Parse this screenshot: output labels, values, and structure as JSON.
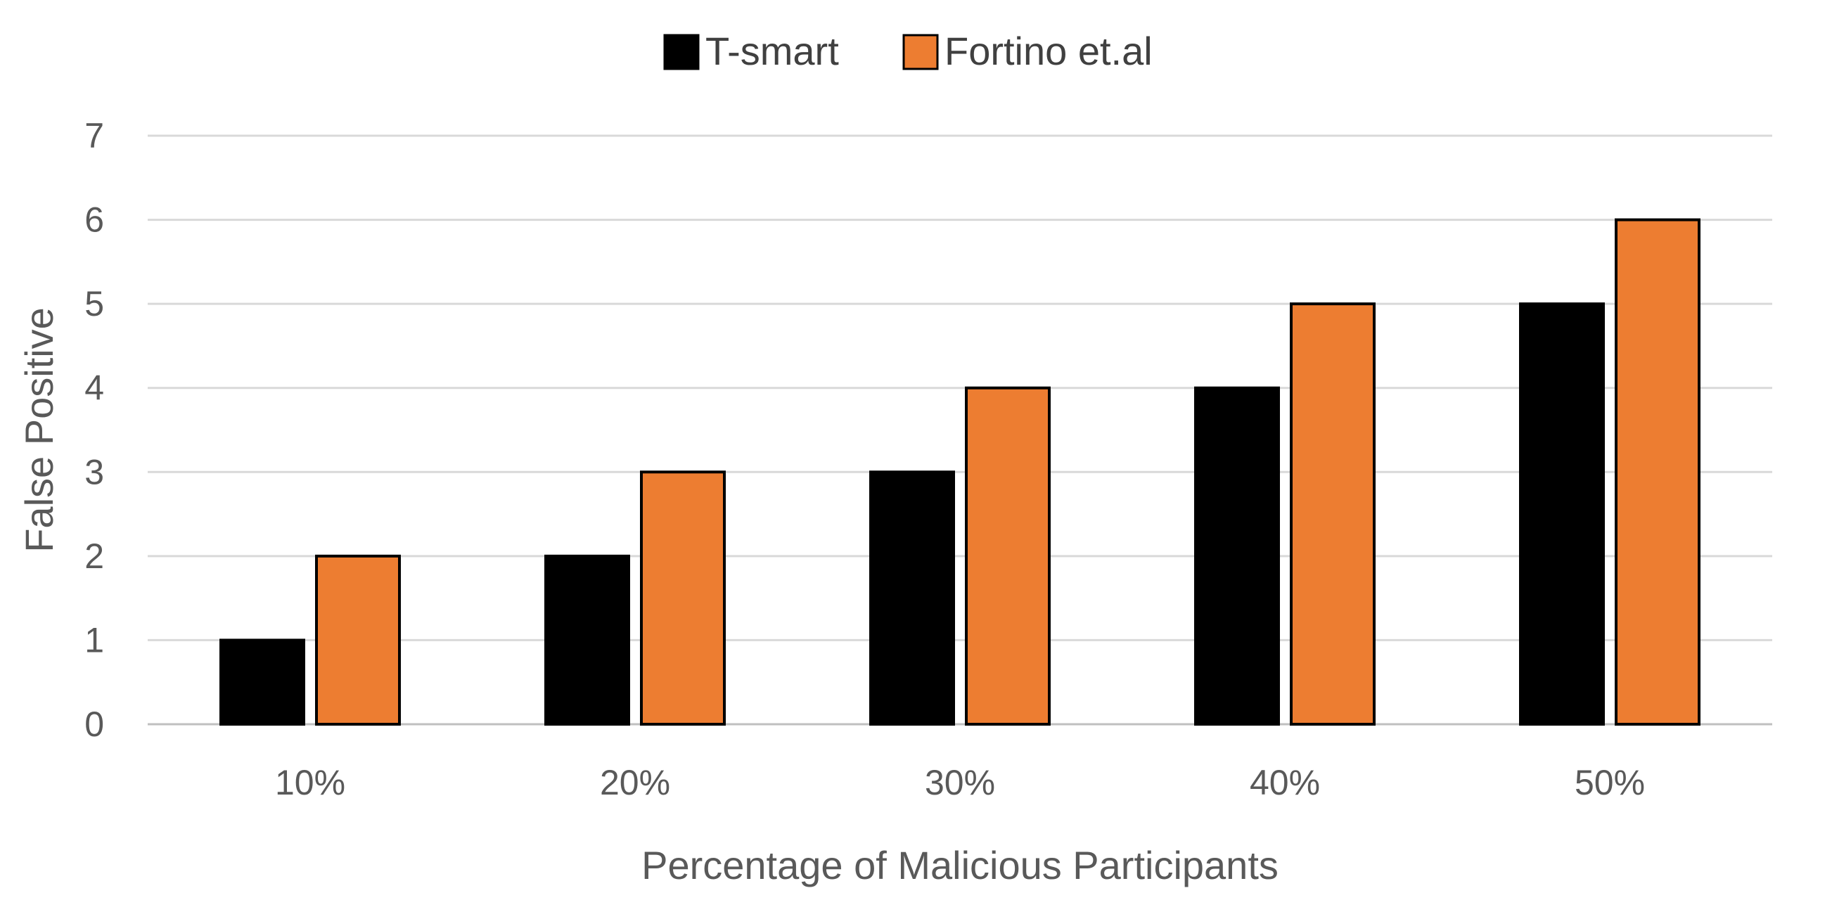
{
  "chart_data": {
    "type": "bar",
    "categories": [
      "10%",
      "20%",
      "30%",
      "40%",
      "50%"
    ],
    "series": [
      {
        "name": "T-smart",
        "color": "#000000",
        "values": [
          1,
          2,
          3,
          4,
          5
        ]
      },
      {
        "name": "Fortino et.al",
        "color": "#ED7D31",
        "values": [
          2,
          3,
          4,
          5,
          6
        ]
      }
    ],
    "xlabel": "Percentage of Malicious Participants",
    "ylabel": "False Positive",
    "ylim": [
      0,
      7
    ],
    "yticks": [
      0,
      1,
      2,
      3,
      4,
      5,
      6,
      7
    ],
    "grid": true,
    "legend_position": "top-center"
  }
}
